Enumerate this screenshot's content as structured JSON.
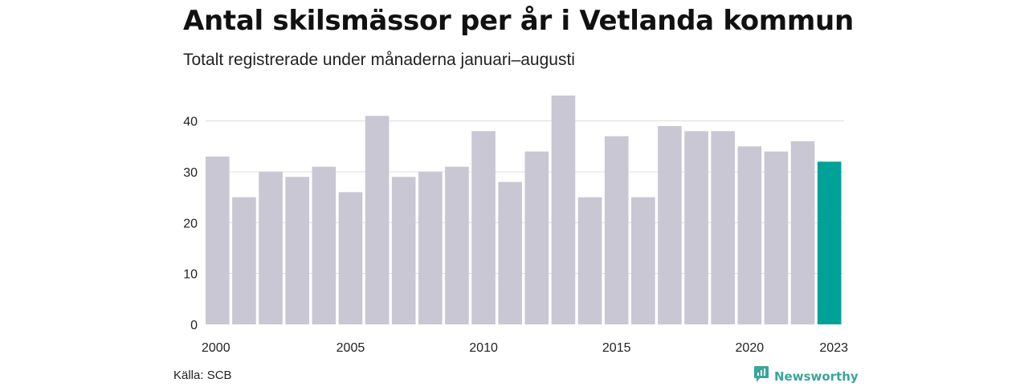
{
  "title": "Antal skilsmässor per år i Vetlanda kommun",
  "subtitle": "Totalt registrerade under månaderna januari–augusti",
  "source": "Källa: SCB",
  "brand": {
    "name": "Newsworthy",
    "icon": "newsworthy-logo-icon"
  },
  "colors": {
    "bar": "#c8c7d3",
    "highlight": "#00a196",
    "grid": "#dcdcdc",
    "brand": "#3aa59a"
  },
  "chart_data": {
    "type": "bar",
    "x": [
      2000,
      2001,
      2002,
      2003,
      2004,
      2005,
      2006,
      2007,
      2008,
      2009,
      2010,
      2011,
      2012,
      2013,
      2014,
      2015,
      2016,
      2017,
      2018,
      2019,
      2020,
      2021,
      2022,
      2023
    ],
    "values": [
      33,
      25,
      30,
      29,
      31,
      26,
      41,
      29,
      30,
      31,
      38,
      28,
      34,
      45,
      25,
      37,
      25,
      39,
      38,
      38,
      35,
      34,
      36,
      32
    ],
    "highlight": [
      2023
    ],
    "x_tick_labels": [
      "2000",
      "2005",
      "2010",
      "2015",
      "2020",
      "2023"
    ],
    "y_ticks": [
      0,
      10,
      20,
      30,
      40
    ],
    "ylim": [
      0,
      45
    ],
    "grid": true,
    "legend": "none"
  }
}
